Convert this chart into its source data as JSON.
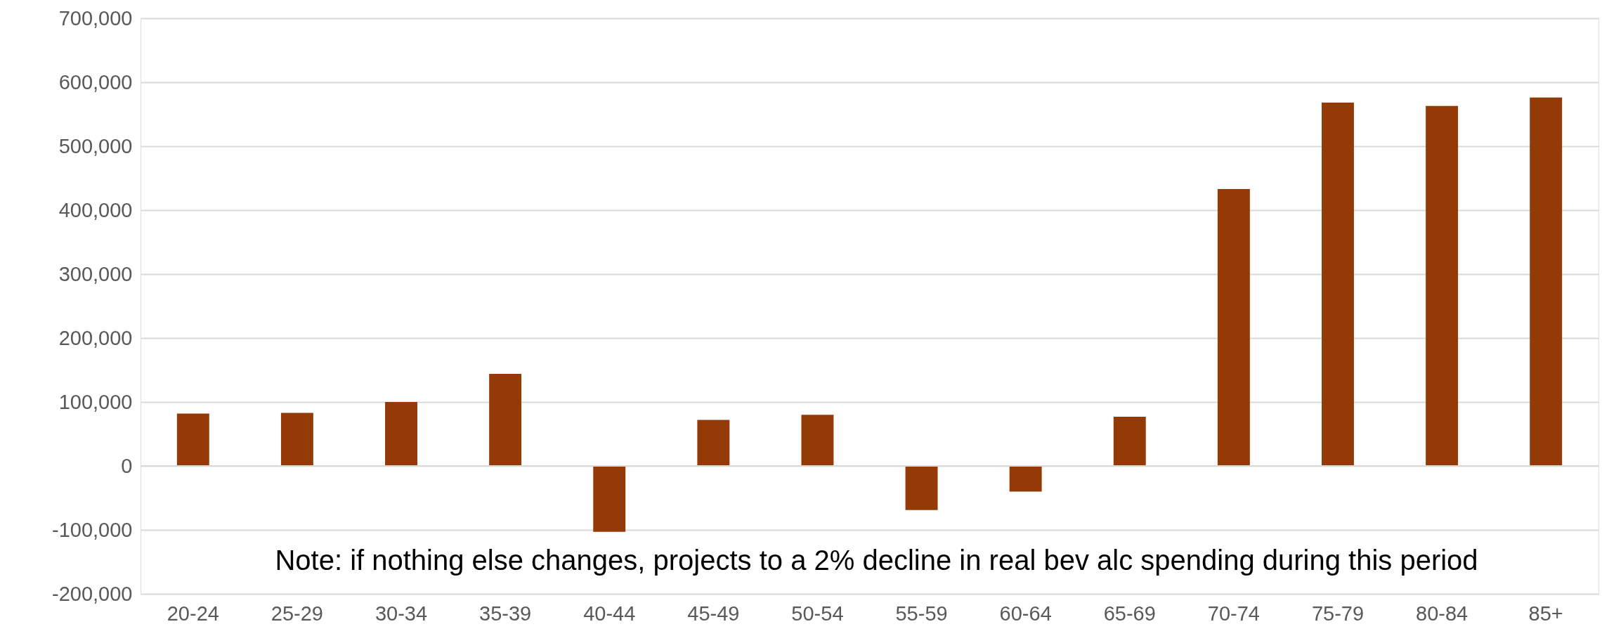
{
  "chart_data": {
    "type": "bar",
    "categories": [
      "20-24",
      "25-29",
      "30-34",
      "35-39",
      "40-44",
      "45-49",
      "50-54",
      "55-59",
      "60-64",
      "65-69",
      "70-74",
      "75-79",
      "80-84",
      "85+"
    ],
    "values": [
      82000,
      83000,
      100000,
      144000,
      -103000,
      72000,
      80000,
      -69000,
      -40000,
      77000,
      433000,
      568000,
      563000,
      576000
    ],
    "color": "#933a06",
    "ylim": [
      -200000,
      700000
    ],
    "yticks": [
      {
        "value": -200000,
        "label": "-200,000"
      },
      {
        "value": -100000,
        "label": "-100,000"
      },
      0,
      {
        "value": 100000,
        "label": "100,000"
      },
      {
        "value": 200000,
        "label": "200,000"
      },
      {
        "value": 300000,
        "label": "300,000"
      },
      {
        "value": 400000,
        "label": "400,000"
      },
      {
        "value": 500000,
        "label": "500,000"
      },
      {
        "value": 600000,
        "label": "600,000"
      },
      {
        "value": 700000,
        "label": "700,000"
      }
    ],
    "grid": "y",
    "annotations": [
      "Note: if nothing else changes, projects to a 2% decline in real bev alc spending during this period"
    ]
  }
}
